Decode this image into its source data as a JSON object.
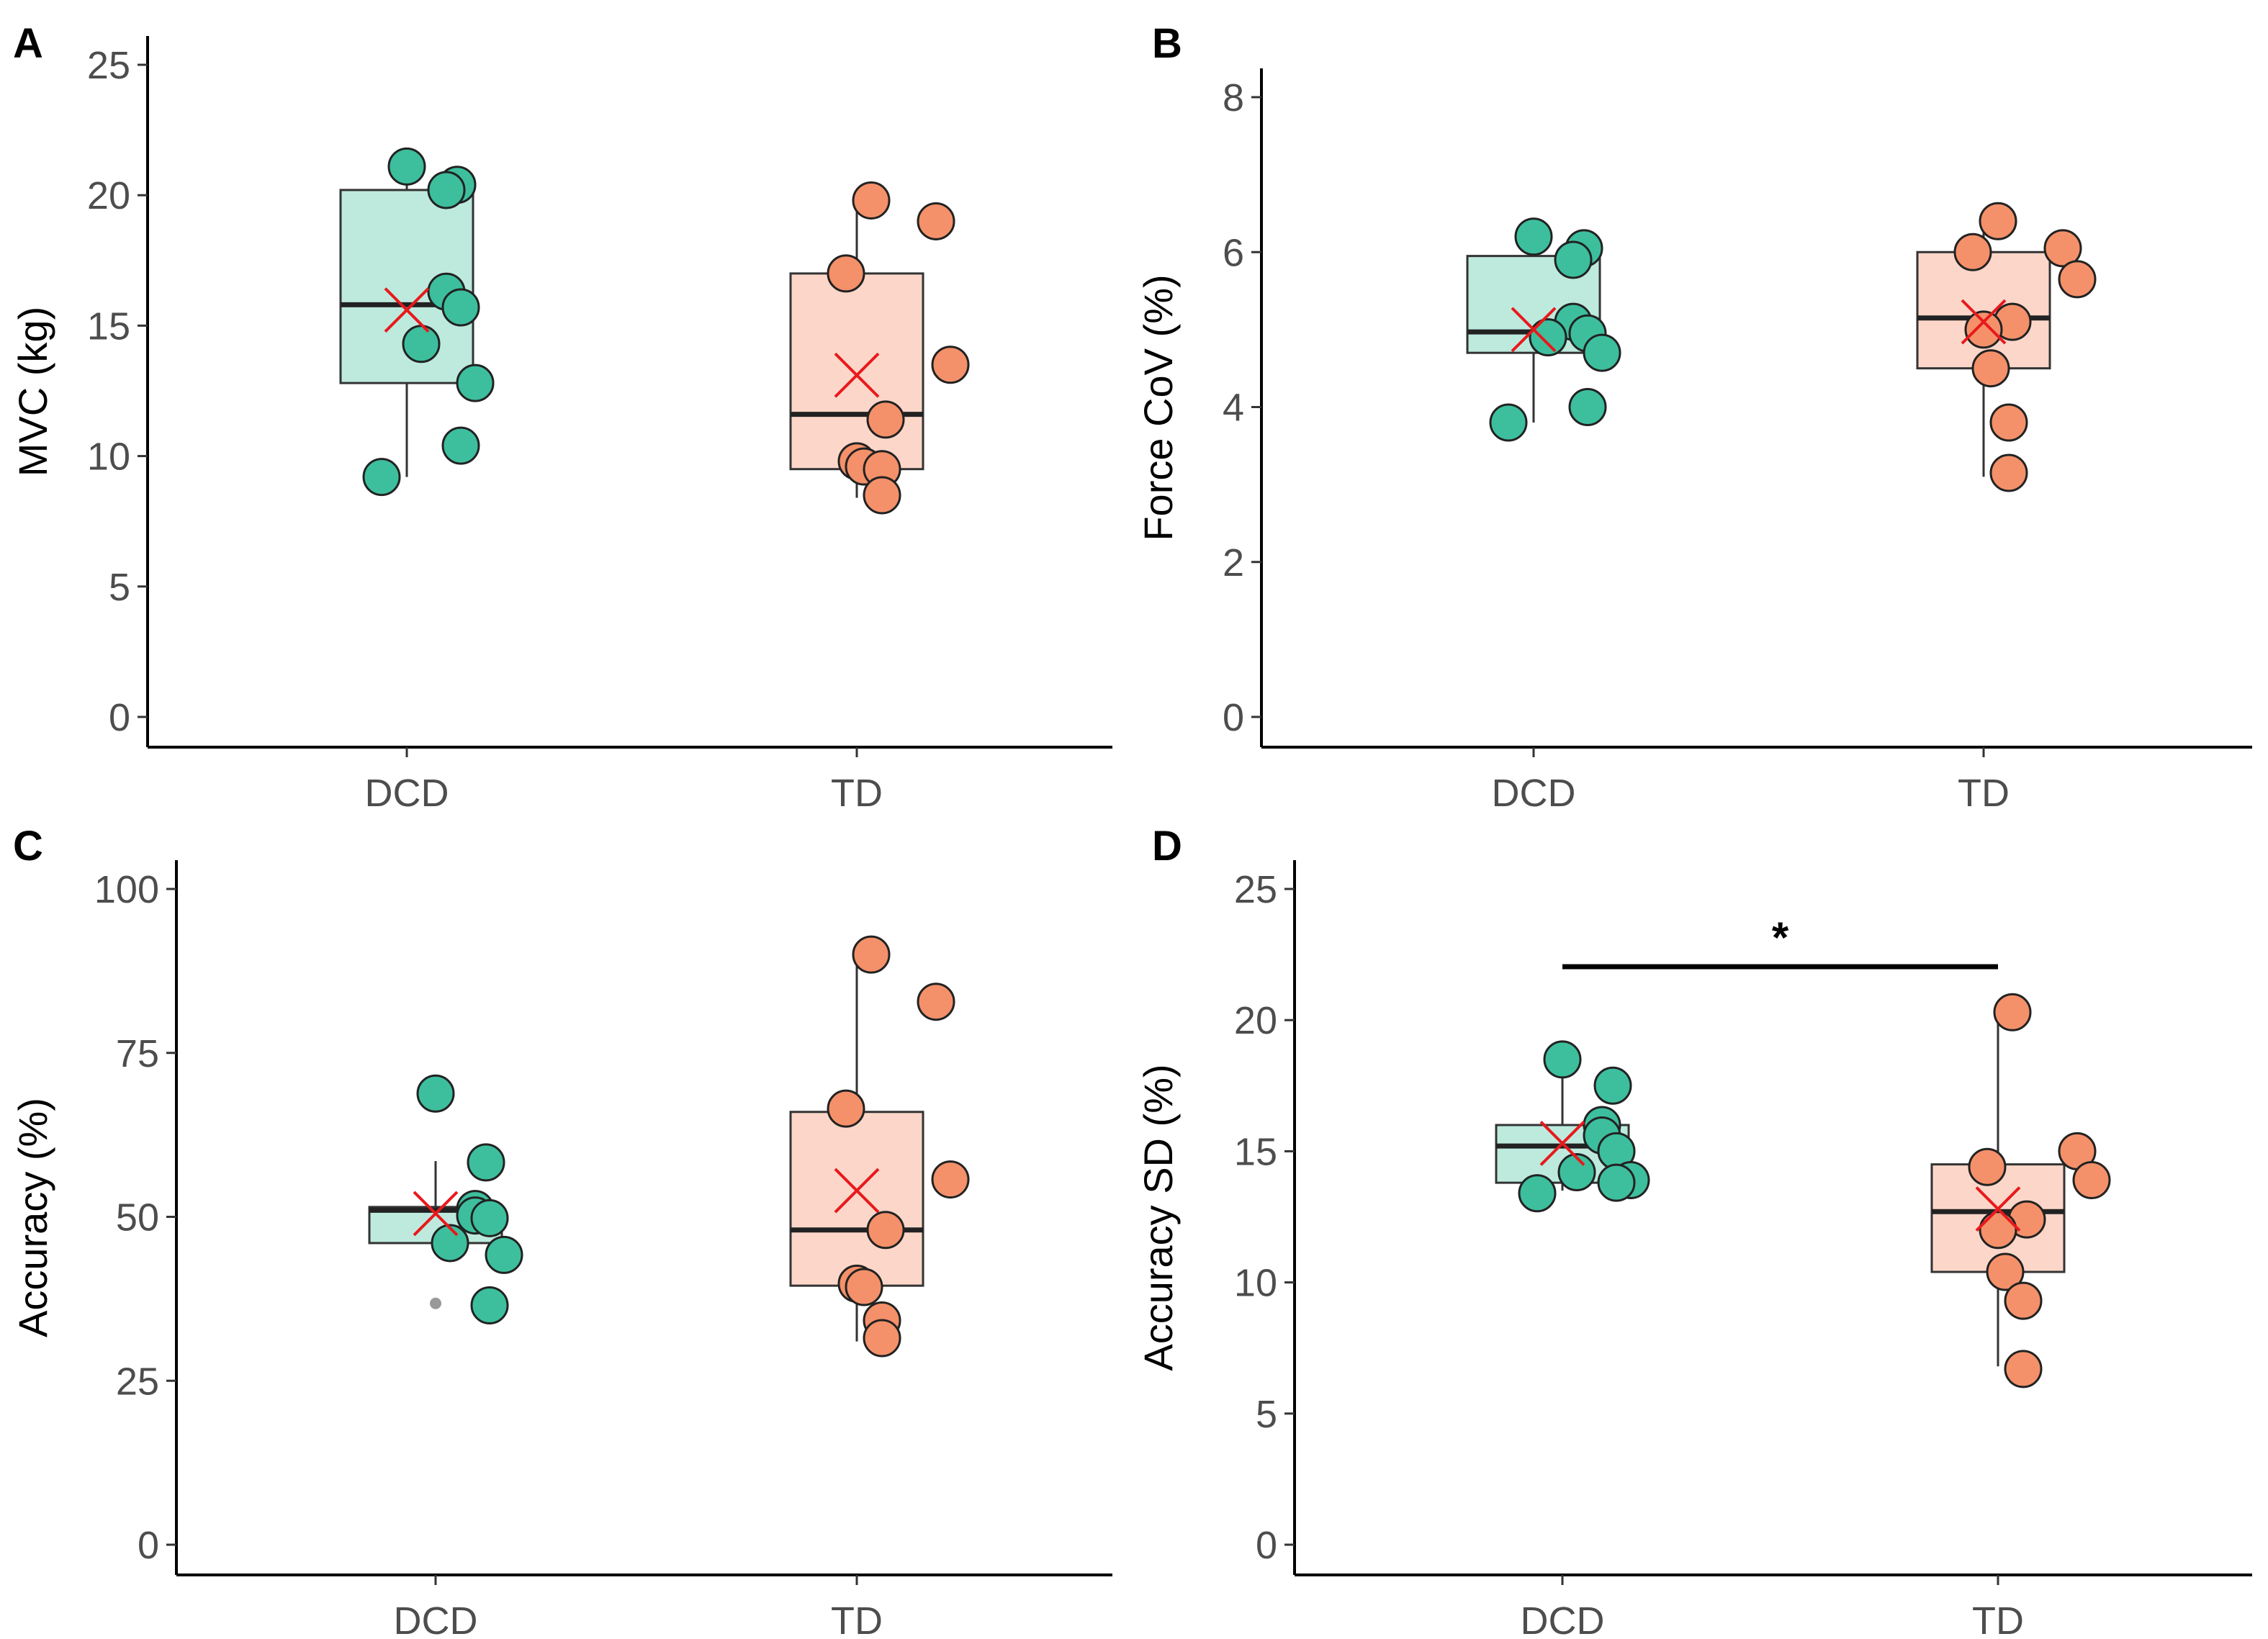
{
  "colors": {
    "DCD_fill": "#3dbf9e",
    "DCD_box": "#b3e6d8",
    "TD_fill": "#f4916a",
    "TD_box": "#fbd0bf",
    "mean": "#e8191c"
  },
  "chart_data": [
    {
      "panel": "A",
      "type": "box",
      "ylabel": "MVC (kg)",
      "ylim": [
        0,
        25
      ],
      "yticks": [
        0,
        5,
        10,
        15,
        20,
        25
      ],
      "categories": [
        "DCD",
        "TD"
      ],
      "groups": [
        {
          "name": "DCD",
          "q1": 12.8,
          "median": 15.8,
          "q3": 20.2,
          "whisker_low": 9.2,
          "whisker_high": 21.0,
          "mean": 15.6,
          "points": [
            21.1,
            20.4,
            20.2,
            16.3,
            15.7,
            14.3,
            12.8,
            10.4,
            9.2
          ],
          "outliers": []
        },
        {
          "name": "TD",
          "q1": 9.5,
          "median": 11.6,
          "q3": 17.0,
          "whisker_low": 8.4,
          "whisker_high": 19.9,
          "mean": 13.1,
          "points": [
            19.8,
            19.0,
            17.0,
            13.5,
            11.4,
            9.8,
            9.6,
            9.5,
            8.5
          ],
          "outliers": []
        }
      ],
      "significance": null
    },
    {
      "panel": "B",
      "type": "box",
      "ylabel": "Force CoV (%)",
      "ylim": [
        0,
        8
      ],
      "yticks": [
        0,
        2,
        4,
        6,
        8
      ],
      "categories": [
        "DCD",
        "TD"
      ],
      "groups": [
        {
          "name": "DCD",
          "q1": 4.7,
          "median": 4.97,
          "q3": 5.95,
          "whisker_low": 3.8,
          "whisker_high": 6.2,
          "mean": 5.0,
          "points": [
            6.2,
            6.05,
            5.9,
            5.1,
            4.95,
            4.9,
            4.7,
            4.0,
            3.8
          ],
          "outliers": []
        },
        {
          "name": "TD",
          "q1": 4.5,
          "median": 5.15,
          "q3": 6.0,
          "whisker_low": 3.1,
          "whisker_high": 6.4,
          "mean": 5.1,
          "points": [
            6.4,
            6.05,
            6.0,
            5.65,
            5.1,
            5.0,
            4.5,
            3.8,
            3.15
          ],
          "outliers": []
        }
      ],
      "significance": null
    },
    {
      "panel": "C",
      "type": "box",
      "ylabel": "Accuracy (%)",
      "ylim": [
        0,
        100
      ],
      "yticks": [
        0,
        25,
        50,
        75,
        100
      ],
      "categories": [
        "DCD",
        "TD"
      ],
      "groups": [
        {
          "name": "DCD",
          "q1": 46.0,
          "median": 51.0,
          "q3": 51.5,
          "whisker_low": 44.5,
          "whisker_high": 58.5,
          "mean": 50.5,
          "points": [
            68.8,
            58.3,
            51.2,
            50.2,
            49.8,
            46.0,
            44.2,
            36.5
          ],
          "outliers": [
            68.5,
            36.8
          ]
        },
        {
          "name": "TD",
          "q1": 39.5,
          "median": 48.0,
          "q3": 66.0,
          "whisker_low": 31.0,
          "whisker_high": 90.0,
          "mean": 54.0,
          "points": [
            90.0,
            82.8,
            66.5,
            55.7,
            48.0,
            39.8,
            39.3,
            34.2,
            31.5
          ],
          "outliers": []
        }
      ],
      "significance": null
    },
    {
      "panel": "D",
      "type": "box",
      "ylabel": "Accuracy SD (%)",
      "ylim": [
        0,
        25
      ],
      "yticks": [
        0,
        5,
        10,
        15,
        20,
        25
      ],
      "categories": [
        "DCD",
        "TD"
      ],
      "groups": [
        {
          "name": "DCD",
          "q1": 13.8,
          "median": 15.2,
          "q3": 16.0,
          "whisker_low": 13.5,
          "whisker_high": 18.6,
          "mean": 15.3,
          "points": [
            18.5,
            17.5,
            16.0,
            15.6,
            15.0,
            14.2,
            13.9,
            13.8,
            13.4
          ],
          "outliers": []
        },
        {
          "name": "TD",
          "q1": 10.4,
          "median": 12.7,
          "q3": 14.5,
          "whisker_low": 6.8,
          "whisker_high": 20.3,
          "mean": 12.8,
          "points": [
            20.3,
            15.0,
            14.4,
            13.9,
            12.4,
            12.0,
            10.4,
            9.3,
            6.7
          ],
          "outliers": []
        }
      ],
      "significance": {
        "label": "*",
        "from": "DCD",
        "to": "TD"
      }
    }
  ]
}
